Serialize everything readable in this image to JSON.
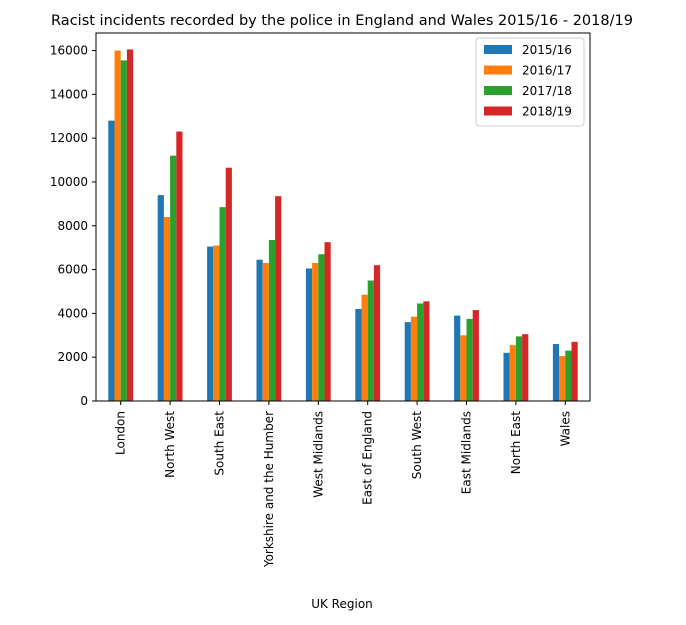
{
  "chart_data": {
    "type": "bar",
    "title": "Racist incidents recorded by the police in England and Wales 2015/16 - 2018/19",
    "xlabel": "UK Region",
    "ylabel": "",
    "ylim": [
      0,
      16800
    ],
    "yticks": [
      0,
      2000,
      4000,
      6000,
      8000,
      10000,
      12000,
      14000,
      16000
    ],
    "categories": [
      "London",
      "North West",
      "South East",
      "Yorkshire and the Humber",
      "West Midlands",
      "East of England",
      "South West",
      "East Midlands",
      "North East",
      "Wales"
    ],
    "series": [
      {
        "name": "2015/16",
        "color": "#1f77b4",
        "values": [
          12800,
          9400,
          7050,
          6450,
          6050,
          4200,
          3600,
          3900,
          2200,
          2600
        ]
      },
      {
        "name": "2016/17",
        "color": "#ff7f0e",
        "values": [
          16000,
          8400,
          7100,
          6300,
          6300,
          4850,
          3850,
          3000,
          2550,
          2050
        ]
      },
      {
        "name": "2017/18",
        "color": "#2ca02c",
        "values": [
          15550,
          11200,
          8850,
          7350,
          6700,
          5500,
          4450,
          3750,
          2950,
          2300
        ]
      },
      {
        "name": "2018/19",
        "color": "#d62728",
        "values": [
          16050,
          12300,
          10650,
          9350,
          7250,
          6200,
          4550,
          4150,
          3050,
          2700
        ]
      }
    ],
    "grid": false,
    "legend_position": "top-right"
  }
}
